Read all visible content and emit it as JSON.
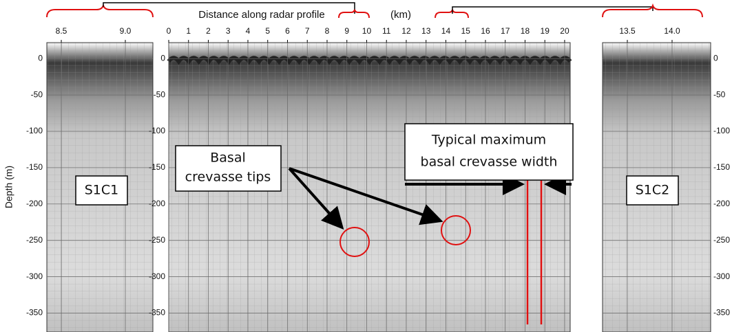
{
  "chart_data": {
    "type": "radargram",
    "title": "Distance along radar profile",
    "x_unit": "(km)",
    "y_label": "Depth (m)",
    "ylim": [
      22,
      -376
    ],
    "yticks": [
      0,
      -50,
      -100,
      -150,
      -200,
      -250,
      -300,
      -350
    ],
    "panels": [
      {
        "label": "S1C1",
        "xlim": [
          8.387,
          9.215
        ],
        "xticks": [
          8.5,
          {
            "value": 9,
            "label": "9.0"
          }
        ]
      },
      {
        "xlim": [
          0,
          20.28
        ],
        "xticks": [
          0,
          1,
          2,
          3,
          4,
          5,
          6,
          7,
          8,
          9,
          10,
          11,
          12,
          13,
          14,
          15,
          16,
          17,
          18,
          19,
          20
        ]
      },
      {
        "label": "S1C2",
        "xlim": [
          13.223,
          14.431
        ],
        "xticks": [
          13.5,
          {
            "value": 14,
            "label": "14.0"
          }
        ]
      }
    ],
    "annotations": [
      {
        "lines": [
          "Basal",
          "crevasse tips"
        ]
      },
      {
        "lines": [
          "Typical maximum",
          "basal crevasse width"
        ]
      }
    ]
  }
}
